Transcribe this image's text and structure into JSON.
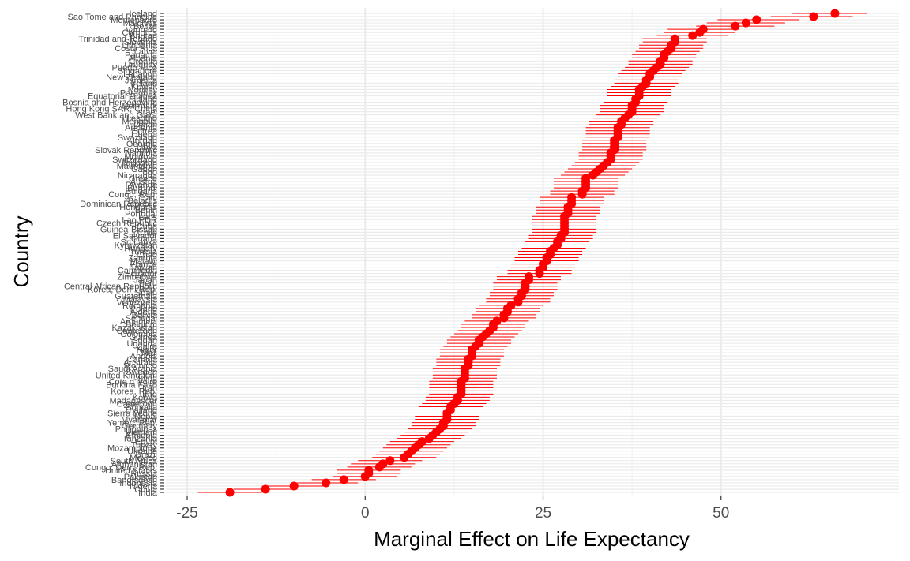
{
  "chart_data": {
    "type": "scatter",
    "title": "",
    "xlabel": "Marginal Effect on Life Expectancy",
    "ylabel": "Country",
    "xlim": [
      -28,
      75
    ],
    "xticks": [
      -25,
      0,
      25,
      50
    ],
    "xtick_labels": [
      "-25",
      "0",
      "25",
      "50"
    ],
    "grid": true,
    "legend": "none",
    "error_bars": "horizontal",
    "points": [
      {
        "label": "Iceland",
        "value": 66.0,
        "low": 60.0,
        "high": 70.5
      },
      {
        "label": "Sao Tome and Principe",
        "value": 63.0,
        "low": 57.0,
        "high": 68.5
      },
      {
        "label": "Montenegro",
        "value": 55.0,
        "low": 49.5,
        "high": 61.0
      },
      {
        "label": "Maldives",
        "value": 53.5,
        "low": 48.0,
        "high": 59.0
      },
      {
        "label": "Belize",
        "value": 52.0,
        "low": 46.5,
        "high": 57.5
      },
      {
        "label": "Vanuatu",
        "value": 47.5,
        "low": 42.5,
        "high": 52.5
      },
      {
        "label": "Comoros",
        "value": 47.0,
        "low": 42.0,
        "high": 52.0
      },
      {
        "label": "Bhutan",
        "value": 46.0,
        "low": 41.0,
        "high": 51.0
      },
      {
        "label": "Trinidad and Tobago",
        "value": 43.5,
        "low": 39.0,
        "high": 48.0
      },
      {
        "label": "Slovenia",
        "value": 43.5,
        "low": 39.0,
        "high": 48.0
      },
      {
        "label": "Lithuania",
        "value": 43.0,
        "low": 38.5,
        "high": 47.5
      },
      {
        "label": "Costa Rica",
        "value": 43.0,
        "low": 38.5,
        "high": 47.5
      },
      {
        "label": "Latvia",
        "value": 42.5,
        "low": 38.0,
        "high": 47.0
      },
      {
        "label": "Panama",
        "value": 42.0,
        "low": 37.5,
        "high": 46.5
      },
      {
        "label": "Albania",
        "value": 42.0,
        "low": 37.5,
        "high": 46.5
      },
      {
        "label": "Croatia",
        "value": 41.5,
        "low": 37.0,
        "high": 46.0
      },
      {
        "label": "Uruguay",
        "value": 41.5,
        "low": 37.0,
        "high": 46.0
      },
      {
        "label": "Puerto Rico",
        "value": 41.0,
        "low": 36.5,
        "high": 45.5
      },
      {
        "label": "Singapore",
        "value": 40.5,
        "low": 36.0,
        "high": 45.0
      },
      {
        "label": "Lebanon",
        "value": 40.0,
        "low": 35.5,
        "high": 44.5
      },
      {
        "label": "New Zealand",
        "value": 40.0,
        "low": 35.5,
        "high": 44.5
      },
      {
        "label": "Jamaica",
        "value": 39.5,
        "low": 35.0,
        "high": 44.0
      },
      {
        "label": "Ireland",
        "value": 39.5,
        "low": 35.0,
        "high": 44.0
      },
      {
        "label": "Kuwait",
        "value": 39.0,
        "low": 34.5,
        "high": 43.5
      },
      {
        "label": "Norway",
        "value": 38.5,
        "low": 34.0,
        "high": 43.0
      },
      {
        "label": "Paraguay",
        "value": 38.5,
        "low": 34.0,
        "high": 43.0
      },
      {
        "label": "Equatorial Guinea",
        "value": 38.5,
        "low": 34.0,
        "high": 43.0
      },
      {
        "label": "Finland",
        "value": 38.0,
        "low": 33.5,
        "high": 42.5
      },
      {
        "label": "Bosnia and Herzegovina",
        "value": 38.0,
        "low": 33.5,
        "high": 42.5
      },
      {
        "label": "Denmark",
        "value": 37.5,
        "low": 33.0,
        "high": 42.0
      },
      {
        "label": "Hong Kong SAR, China",
        "value": 37.5,
        "low": 33.0,
        "high": 42.0
      },
      {
        "label": "Israel",
        "value": 37.5,
        "low": 33.0,
        "high": 42.0
      },
      {
        "label": "West Bank and Gaza",
        "value": 37.0,
        "low": 32.5,
        "high": 41.5
      },
      {
        "label": "Lesotho",
        "value": 36.5,
        "low": 32.0,
        "high": 41.0
      },
      {
        "label": "Mongolia",
        "value": 36.0,
        "low": 31.5,
        "high": 40.5
      },
      {
        "label": "Oman",
        "value": 36.0,
        "low": 31.5,
        "high": 40.5
      },
      {
        "label": "Armenia",
        "value": 35.5,
        "low": 31.0,
        "high": 40.0
      },
      {
        "label": "Eritrea",
        "value": 35.5,
        "low": 31.0,
        "high": 40.0
      },
      {
        "label": "Liberia",
        "value": 35.5,
        "low": 31.0,
        "high": 40.0
      },
      {
        "label": "Swaziland",
        "value": 35.5,
        "low": 31.0,
        "high": 40.0
      },
      {
        "label": "Jordan",
        "value": 35.0,
        "low": 30.5,
        "high": 39.5
      },
      {
        "label": "Georgia",
        "value": 35.0,
        "low": 30.5,
        "high": 39.5
      },
      {
        "label": "Libya",
        "value": 35.0,
        "low": 30.5,
        "high": 39.5
      },
      {
        "label": "Slovak Republic",
        "value": 35.0,
        "low": 30.5,
        "high": 39.5
      },
      {
        "label": "Namibia",
        "value": 34.5,
        "low": 30.0,
        "high": 39.0
      },
      {
        "label": "Moldova",
        "value": 34.5,
        "low": 30.0,
        "high": 39.0
      },
      {
        "label": "Switzerland",
        "value": 34.5,
        "low": 30.0,
        "high": 39.0
      },
      {
        "label": "Tajikistan",
        "value": 34.0,
        "low": 29.5,
        "high": 38.5
      },
      {
        "label": "Mauritania",
        "value": 33.5,
        "low": 29.0,
        "high": 38.0
      },
      {
        "label": "Gabon",
        "value": 33.0,
        "low": 28.5,
        "high": 37.5
      },
      {
        "label": "Togo",
        "value": 32.5,
        "low": 28.0,
        "high": 37.0
      },
      {
        "label": "Nicaragua",
        "value": 32.0,
        "low": 27.5,
        "high": 36.5
      },
      {
        "label": "Greece",
        "value": 31.0,
        "low": 26.5,
        "high": 35.5
      },
      {
        "label": "Austria",
        "value": 31.0,
        "low": 26.5,
        "high": 35.5
      },
      {
        "label": "Rwanda",
        "value": 31.0,
        "low": 26.5,
        "high": 35.5
      },
      {
        "label": "Burundi",
        "value": 31.0,
        "low": 26.5,
        "high": 35.5
      },
      {
        "label": "Bulgaria",
        "value": 30.5,
        "low": 26.0,
        "high": 35.0
      },
      {
        "label": "Congo, Rep.",
        "value": 30.5,
        "low": 26.0,
        "high": 35.0
      },
      {
        "label": "Haiti",
        "value": 29.0,
        "low": 24.5,
        "high": 33.5
      },
      {
        "label": "Belarus",
        "value": 29.0,
        "low": 24.5,
        "high": 33.5
      },
      {
        "label": "Dominican Republic",
        "value": 29.0,
        "low": 24.5,
        "high": 33.5
      },
      {
        "label": "Honduras",
        "value": 28.5,
        "low": 24.0,
        "high": 33.0
      },
      {
        "label": "Benin",
        "value": 28.5,
        "low": 24.0,
        "high": 33.0
      },
      {
        "label": "Portugal",
        "value": 28.5,
        "low": 24.0,
        "high": 33.0
      },
      {
        "label": "Laos",
        "value": 28.0,
        "low": 23.5,
        "high": 32.5
      },
      {
        "label": "Lao PDR",
        "value": 28.0,
        "low": 23.5,
        "high": 32.5
      },
      {
        "label": "Czech Republic",
        "value": 28.0,
        "low": 23.5,
        "high": 32.5
      },
      {
        "label": "Cuba",
        "value": 28.0,
        "low": 23.5,
        "high": 32.5
      },
      {
        "label": "Guinea-Bissau",
        "value": 28.0,
        "low": 23.5,
        "high": 32.5
      },
      {
        "label": "Chile",
        "value": 28.0,
        "low": 23.5,
        "high": 32.5
      },
      {
        "label": "El Salvador",
        "value": 27.5,
        "low": 23.0,
        "high": 32.0
      },
      {
        "label": "Ghana",
        "value": 27.5,
        "low": 23.0,
        "high": 32.0
      },
      {
        "label": "Sri Lanka",
        "value": 27.0,
        "low": 22.5,
        "high": 31.5
      },
      {
        "label": "Kyrgyzstan",
        "value": 27.0,
        "low": 22.5,
        "high": 31.5
      },
      {
        "label": "Hungary",
        "value": 26.5,
        "low": 22.0,
        "high": 31.0
      },
      {
        "label": "Tunisia",
        "value": 26.0,
        "low": 21.5,
        "high": 30.5
      },
      {
        "label": "Chad",
        "value": 26.0,
        "low": 21.5,
        "high": 30.5
      },
      {
        "label": "Zambia",
        "value": 25.5,
        "low": 21.0,
        "high": 30.0
      },
      {
        "label": "Malawi",
        "value": 25.5,
        "low": 21.0,
        "high": 30.0
      },
      {
        "label": "France",
        "value": 25.0,
        "low": 20.5,
        "high": 29.5
      },
      {
        "label": "Taiwan",
        "value": 25.0,
        "low": 20.5,
        "high": 29.5
      },
      {
        "label": "Cambodia",
        "value": 24.5,
        "low": 20.0,
        "high": 29.0
      },
      {
        "label": "Ecuador",
        "value": 24.5,
        "low": 20.0,
        "high": 29.0
      },
      {
        "label": "Zimbabwe",
        "value": 23.0,
        "low": 18.5,
        "high": 27.5
      },
      {
        "label": "Japan",
        "value": 23.0,
        "low": 18.5,
        "high": 27.5
      },
      {
        "label": "Peru",
        "value": 22.5,
        "low": 18.0,
        "high": 27.0
      },
      {
        "label": "Central African Republic",
        "value": 22.5,
        "low": 18.0,
        "high": 27.0
      },
      {
        "label": "Korea, Dem. Rep.",
        "value": 22.5,
        "low": 18.0,
        "high": 27.0
      },
      {
        "label": "Spain",
        "value": 22.0,
        "low": 17.5,
        "high": 26.5
      },
      {
        "label": "Guatemala",
        "value": 22.0,
        "low": 17.5,
        "high": 26.5
      },
      {
        "label": "Malaysia",
        "value": 21.5,
        "low": 17.0,
        "high": 26.0
      },
      {
        "label": "Venezuela",
        "value": 21.5,
        "low": 17.0,
        "high": 26.0
      },
      {
        "label": "Romania",
        "value": 20.5,
        "low": 16.0,
        "high": 25.0
      },
      {
        "label": "Poland",
        "value": 20.0,
        "low": 15.5,
        "high": 24.5
      },
      {
        "label": "Algeria",
        "value": 20.0,
        "low": 15.5,
        "high": 24.5
      },
      {
        "label": "Bolivia",
        "value": 19.5,
        "low": 15.0,
        "high": 24.0
      },
      {
        "label": "Senegal",
        "value": 19.5,
        "low": 15.0,
        "high": 24.0
      },
      {
        "label": "Argentina",
        "value": 18.5,
        "low": 14.0,
        "high": 23.0
      },
      {
        "label": "Belgium",
        "value": 18.0,
        "low": 13.5,
        "high": 22.5
      },
      {
        "label": "Kazakhstan",
        "value": 18.0,
        "low": 13.5,
        "high": 22.5
      },
      {
        "label": "Cameroon",
        "value": 17.5,
        "low": 13.0,
        "high": 22.0
      },
      {
        "label": "Colombia",
        "value": 17.0,
        "low": 12.5,
        "high": 21.5
      },
      {
        "label": "Guinea",
        "value": 16.5,
        "low": 12.0,
        "high": 21.0
      },
      {
        "label": "Sudan",
        "value": 16.0,
        "low": 11.5,
        "high": 20.5
      },
      {
        "label": "Uganda",
        "value": 16.0,
        "low": 11.5,
        "high": 20.5
      },
      {
        "label": "Zaire",
        "value": 15.5,
        "low": 11.0,
        "high": 20.0
      },
      {
        "label": "Niger",
        "value": 15.0,
        "low": 10.5,
        "high": 19.5
      },
      {
        "label": "Mali",
        "value": 15.0,
        "low": 10.5,
        "high": 19.5
      },
      {
        "label": "Angola",
        "value": 15.0,
        "low": 10.5,
        "high": 19.5
      },
      {
        "label": "Canada",
        "value": 14.5,
        "low": 10.0,
        "high": 19.0
      },
      {
        "label": "Australia",
        "value": 14.5,
        "low": 10.0,
        "high": 19.0
      },
      {
        "label": "Morocco",
        "value": 14.5,
        "low": 10.0,
        "high": 19.0
      },
      {
        "label": "Saudi Arabia",
        "value": 14.0,
        "low": 9.5,
        "high": 18.5
      },
      {
        "label": "Sweden",
        "value": 14.0,
        "low": 9.5,
        "high": 18.5
      },
      {
        "label": "United Kingdom",
        "value": 14.0,
        "low": 9.5,
        "high": 18.5
      },
      {
        "label": "Syria",
        "value": 14.0,
        "low": 9.5,
        "high": 18.5
      },
      {
        "label": "Cote d'Ivoire",
        "value": 13.5,
        "low": 9.0,
        "high": 18.0
      },
      {
        "label": "Burkina Faso",
        "value": 13.5,
        "low": 9.0,
        "high": 18.0
      },
      {
        "label": "Iran",
        "value": 13.5,
        "low": 9.0,
        "high": 18.0
      },
      {
        "label": "Korea, Rep.",
        "value": 13.5,
        "low": 9.0,
        "high": 18.0
      },
      {
        "label": "Iraq",
        "value": 13.5,
        "low": 9.0,
        "high": 18.0
      },
      {
        "label": "Kenya",
        "value": 13.0,
        "low": 8.5,
        "high": 17.5
      },
      {
        "label": "Madagascar",
        "value": 13.0,
        "low": 8.5,
        "high": 17.5
      },
      {
        "label": "Cameroon",
        "value": 12.5,
        "low": 8.0,
        "high": 17.0
      },
      {
        "label": "Somalia",
        "value": 12.0,
        "low": 7.5,
        "high": 16.5
      },
      {
        "label": "Thailand",
        "value": 12.0,
        "low": 7.5,
        "high": 16.5
      },
      {
        "label": "Sierra Leone",
        "value": 11.5,
        "low": 7.0,
        "high": 16.0
      },
      {
        "label": "Nepal",
        "value": 11.5,
        "low": 7.0,
        "high": 16.0
      },
      {
        "label": "Myanmar",
        "value": 11.5,
        "low": 7.0,
        "high": 16.0
      },
      {
        "label": "Yemen, Rep.",
        "value": 11.0,
        "low": 6.5,
        "high": 15.5
      },
      {
        "label": "Germany",
        "value": 11.0,
        "low": 6.5,
        "high": 15.5
      },
      {
        "label": "Philippines",
        "value": 10.5,
        "low": 6.0,
        "high": 15.0
      },
      {
        "label": "Vietnam",
        "value": 10.0,
        "low": 5.5,
        "high": 14.5
      },
      {
        "label": "Ethiopia",
        "value": 9.5,
        "low": 5.0,
        "high": 14.0
      },
      {
        "label": "Tanzania",
        "value": 9.0,
        "low": 4.5,
        "high": 13.5
      },
      {
        "label": "Egypt",
        "value": 8.0,
        "low": 3.5,
        "high": 12.5
      },
      {
        "label": "Turkey",
        "value": 7.5,
        "low": 3.0,
        "high": 12.0
      },
      {
        "label": "Mozambique",
        "value": 7.0,
        "low": 2.5,
        "high": 11.5
      },
      {
        "label": "Ukraine",
        "value": 6.5,
        "low": 2.0,
        "high": 11.0
      },
      {
        "label": "Brazil",
        "value": 6.0,
        "low": 1.5,
        "high": 10.5
      },
      {
        "label": "Mexico",
        "value": 5.5,
        "low": 1.0,
        "high": 10.0
      },
      {
        "label": "South Africa",
        "value": 3.5,
        "low": -1.0,
        "high": 8.0
      },
      {
        "label": "Afghanistan",
        "value": 2.5,
        "low": -2.0,
        "high": 7.0
      },
      {
        "label": "Congo, Dem. Rep.",
        "value": 2.0,
        "low": -2.5,
        "high": 6.5
      },
      {
        "label": "United States",
        "value": 0.5,
        "low": -4.0,
        "high": 5.0
      },
      {
        "label": "Russia",
        "value": 0.5,
        "low": -4.0,
        "high": 5.0
      },
      {
        "label": "Pakistan",
        "value": 0.0,
        "low": -4.5,
        "high": 4.5
      },
      {
        "label": "Bangladesh",
        "value": -3.0,
        "low": -7.5,
        "high": 1.5
      },
      {
        "label": "Indonesia",
        "value": -5.5,
        "low": -10.0,
        "high": -1.0
      },
      {
        "label": "Nigeria",
        "value": -10.0,
        "low": -14.5,
        "high": -5.5
      },
      {
        "label": "China",
        "value": -14.0,
        "low": -18.5,
        "high": -9.5
      },
      {
        "label": "India",
        "value": -19.0,
        "low": -23.5,
        "high": -14.5
      }
    ]
  },
  "colors": {
    "point": "#ff0000",
    "errorbar": "#ff0000",
    "panel": "#ffffff",
    "grid_major": "#ebebeb",
    "grid_minor": "#f2f2f2",
    "axis_text": "#4d4d4d",
    "tick": "#333333"
  }
}
